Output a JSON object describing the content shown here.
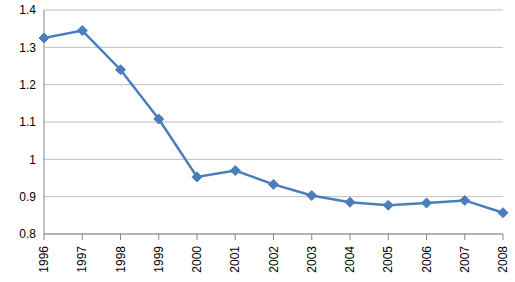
{
  "chart_data": {
    "type": "line",
    "categories": [
      "1996",
      "1997",
      "1998",
      "1999",
      "2000",
      "2001",
      "2002",
      "2003",
      "2004",
      "2005",
      "2006",
      "2007",
      "2008"
    ],
    "values": [
      1.325,
      1.345,
      1.24,
      1.108,
      0.953,
      0.97,
      0.933,
      0.903,
      0.885,
      0.877,
      0.883,
      0.89,
      0.857
    ],
    "color": "#4a7ebb",
    "marker": "diamond",
    "line_style": "solid",
    "ylim": [
      0.8,
      1.4
    ],
    "yticks": [
      0.8,
      0.9,
      1,
      1.1,
      1.2,
      1.3,
      1.4
    ],
    "grid": true
  }
}
